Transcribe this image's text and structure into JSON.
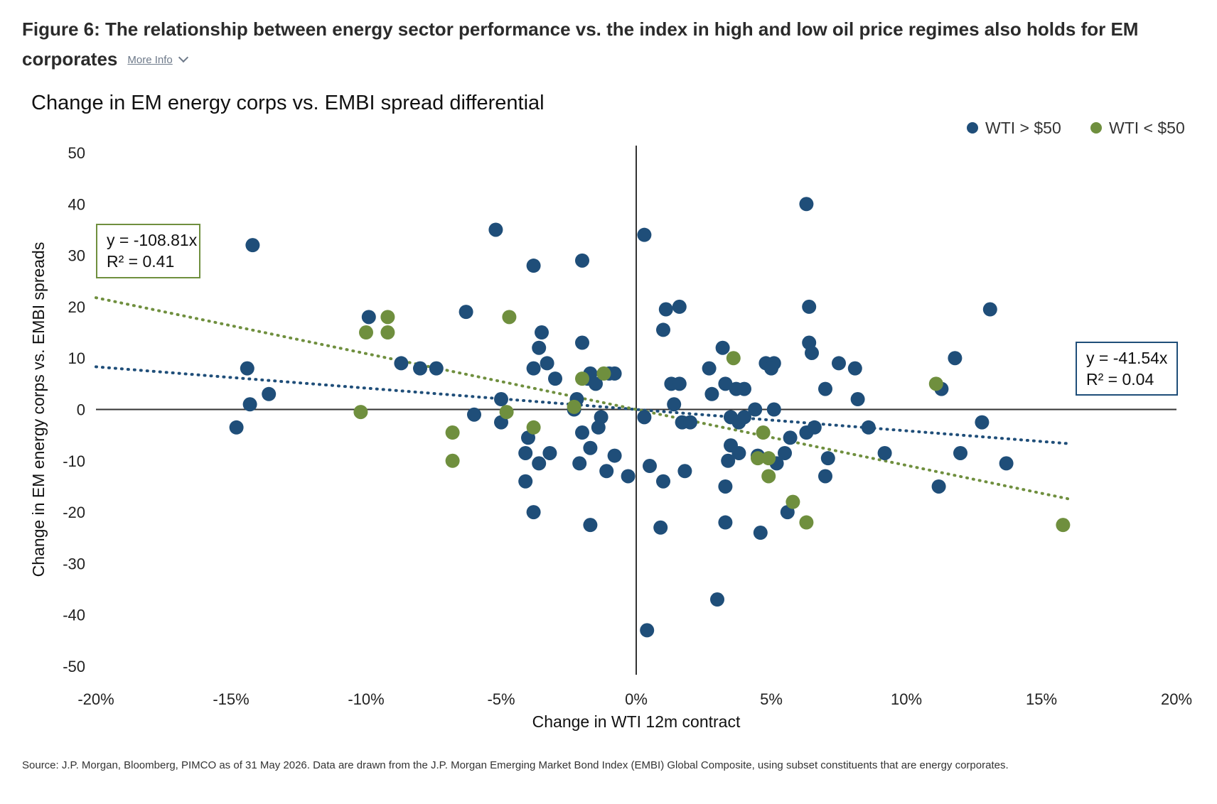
{
  "heading": {
    "title": "Figure 6: The relationship between energy sector performance vs. the index in high and low oil price regimes also holds for EM corporates",
    "more_info": "More Info"
  },
  "source": "Source: J.P. Morgan, Bloomberg, PIMCO as of 31 May 2026. Data are drawn from the J.P. Morgan Emerging Market Bond Index (EMBI) Global Composite, using subset constituents that are energy corporates.",
  "colors": {
    "high": "#1f4e79",
    "low": "#6f8f3e",
    "axis": "#333333"
  },
  "chart_data": {
    "type": "scatter",
    "title": "Change in EM energy corps vs. EMBI spread differential",
    "xlabel": "Change in WTI 12m contract",
    "ylabel": "Change in EM energy corps vs. EMBI spreads",
    "xlim": [
      -0.2,
      0.2
    ],
    "ylim": [
      -50,
      50
    ],
    "x_ticks": [
      {
        "v": -0.2,
        "label": "-20%"
      },
      {
        "v": -0.15,
        "label": "-15%"
      },
      {
        "v": -0.1,
        "label": "-10%"
      },
      {
        "v": -0.05,
        "label": "-5%"
      },
      {
        "v": 0,
        "label": "0%"
      },
      {
        "v": 0.05,
        "label": "5%"
      },
      {
        "v": 0.1,
        "label": "10%"
      },
      {
        "v": 0.15,
        "label": "15%"
      },
      {
        "v": 0.2,
        "label": "20%"
      }
    ],
    "y_ticks": [
      {
        "v": 50,
        "label": "50"
      },
      {
        "v": 40,
        "label": "40"
      },
      {
        "v": 30,
        "label": "30"
      },
      {
        "v": 20,
        "label": "20"
      },
      {
        "v": 10,
        "label": "10"
      },
      {
        "v": 0,
        "label": "0"
      },
      {
        "v": -10,
        "label": "-10"
      },
      {
        "v": -20,
        "label": "-20"
      },
      {
        "v": -30,
        "label": "-30"
      },
      {
        "v": -40,
        "label": "-40"
      },
      {
        "v": -50,
        "label": "-50"
      }
    ],
    "legend_position": "top-right",
    "grid": false,
    "series": [
      {
        "name": "WTI > $50",
        "color": "#1f4e79",
        "trendline": {
          "slope": -41.54,
          "label_eq": "y = -41.54x",
          "label_r2": "R² = 0.04",
          "x_range": [
            -0.2,
            0.16
          ]
        },
        "points": [
          [
            -0.142,
            32
          ],
          [
            -0.144,
            8
          ],
          [
            -0.143,
            1
          ],
          [
            -0.148,
            -3.5
          ],
          [
            -0.136,
            3
          ],
          [
            -0.099,
            18
          ],
          [
            -0.087,
            9
          ],
          [
            -0.08,
            8
          ],
          [
            -0.074,
            8
          ],
          [
            -0.063,
            19
          ],
          [
            -0.052,
            35
          ],
          [
            -0.038,
            28
          ],
          [
            -0.035,
            15
          ],
          [
            -0.036,
            12
          ],
          [
            -0.038,
            8
          ],
          [
            -0.033,
            9
          ],
          [
            -0.03,
            6
          ],
          [
            -0.02,
            29
          ],
          [
            -0.02,
            13
          ],
          [
            -0.017,
            7
          ],
          [
            -0.018,
            6
          ],
          [
            -0.022,
            2
          ],
          [
            -0.023,
            0
          ],
          [
            -0.01,
            7
          ],
          [
            -0.008,
            7
          ],
          [
            -0.015,
            5
          ],
          [
            -0.013,
            -1.5
          ],
          [
            -0.05,
            2
          ],
          [
            -0.05,
            -2.5
          ],
          [
            -0.06,
            -1
          ],
          [
            -0.04,
            -5.5
          ],
          [
            -0.032,
            -8.5
          ],
          [
            -0.036,
            -10.5
          ],
          [
            -0.021,
            -10.5
          ],
          [
            -0.017,
            -7.5
          ],
          [
            -0.02,
            -4.5
          ],
          [
            -0.014,
            -3.5
          ],
          [
            -0.008,
            -9
          ],
          [
            -0.011,
            -12
          ],
          [
            -0.003,
            -13
          ],
          [
            -0.041,
            -8.5
          ],
          [
            -0.041,
            -14
          ],
          [
            -0.038,
            -20
          ],
          [
            -0.017,
            -22.5
          ],
          [
            0.003,
            34
          ],
          [
            0.011,
            19.5
          ],
          [
            0.016,
            20
          ],
          [
            0.01,
            15.5
          ],
          [
            0.013,
            5
          ],
          [
            0.016,
            5
          ],
          [
            0.014,
            1
          ],
          [
            0.017,
            -2.5
          ],
          [
            0.02,
            -2.5
          ],
          [
            0.003,
            -1.5
          ],
          [
            0.005,
            -11
          ],
          [
            0.01,
            -14
          ],
          [
            0.018,
            -12
          ],
          [
            0.009,
            -23
          ],
          [
            0.027,
            8
          ],
          [
            0.028,
            3
          ],
          [
            0.032,
            12
          ],
          [
            0.033,
            5
          ],
          [
            0.037,
            4
          ],
          [
            0.04,
            4
          ],
          [
            0.035,
            -1.5
          ],
          [
            0.038,
            -2.5
          ],
          [
            0.035,
            -7
          ],
          [
            0.038,
            -8.5
          ],
          [
            0.034,
            -10
          ],
          [
            0.044,
            0
          ],
          [
            0.04,
            -1.5
          ],
          [
            0.033,
            -15
          ],
          [
            0.033,
            -22
          ],
          [
            0.03,
            -37
          ],
          [
            0.004,
            -43
          ],
          [
            0.048,
            9
          ],
          [
            0.051,
            9
          ],
          [
            0.05,
            8
          ],
          [
            0.051,
            0
          ],
          [
            0.045,
            -9
          ],
          [
            0.052,
            -10.5
          ],
          [
            0.055,
            -8.5
          ],
          [
            0.057,
            -5.5
          ],
          [
            0.063,
            -4.5
          ],
          [
            0.066,
            -3.5
          ],
          [
            0.046,
            -24
          ],
          [
            0.056,
            -20
          ],
          [
            0.063,
            40
          ],
          [
            0.064,
            20
          ],
          [
            0.064,
            13
          ],
          [
            0.065,
            11
          ],
          [
            0.075,
            9
          ],
          [
            0.07,
            4
          ],
          [
            0.081,
            8
          ],
          [
            0.082,
            2
          ],
          [
            0.086,
            -3.5
          ],
          [
            0.071,
            -9.5
          ],
          [
            0.07,
            -13
          ],
          [
            0.092,
            -8.5
          ],
          [
            0.113,
            4
          ],
          [
            0.118,
            10
          ],
          [
            0.12,
            -8.5
          ],
          [
            0.128,
            -2.5
          ],
          [
            0.131,
            19.5
          ],
          [
            0.137,
            -10.5
          ],
          [
            0.112,
            -15
          ]
        ]
      },
      {
        "name": "WTI < $50",
        "color": "#6f8f3e",
        "trendline": {
          "slope": -108.81,
          "label_eq": "y = -108.81x",
          "label_r2": "R² = 0.41",
          "x_range": [
            -0.2,
            0.16
          ]
        },
        "points": [
          [
            -0.092,
            18
          ],
          [
            -0.092,
            15
          ],
          [
            -0.1,
            15
          ],
          [
            -0.102,
            -0.5
          ],
          [
            -0.068,
            -4.5
          ],
          [
            -0.068,
            -10
          ],
          [
            -0.047,
            18
          ],
          [
            -0.048,
            -0.5
          ],
          [
            -0.038,
            -3.5
          ],
          [
            -0.02,
            6
          ],
          [
            -0.023,
            0.5
          ],
          [
            -0.012,
            7
          ],
          [
            0.036,
            10
          ],
          [
            0.047,
            -4.5
          ],
          [
            0.045,
            -9.5
          ],
          [
            0.049,
            -9.5
          ],
          [
            0.049,
            -13
          ],
          [
            0.058,
            -18
          ],
          [
            0.063,
            -22
          ],
          [
            0.111,
            5
          ],
          [
            0.158,
            -22.5
          ]
        ]
      }
    ]
  }
}
